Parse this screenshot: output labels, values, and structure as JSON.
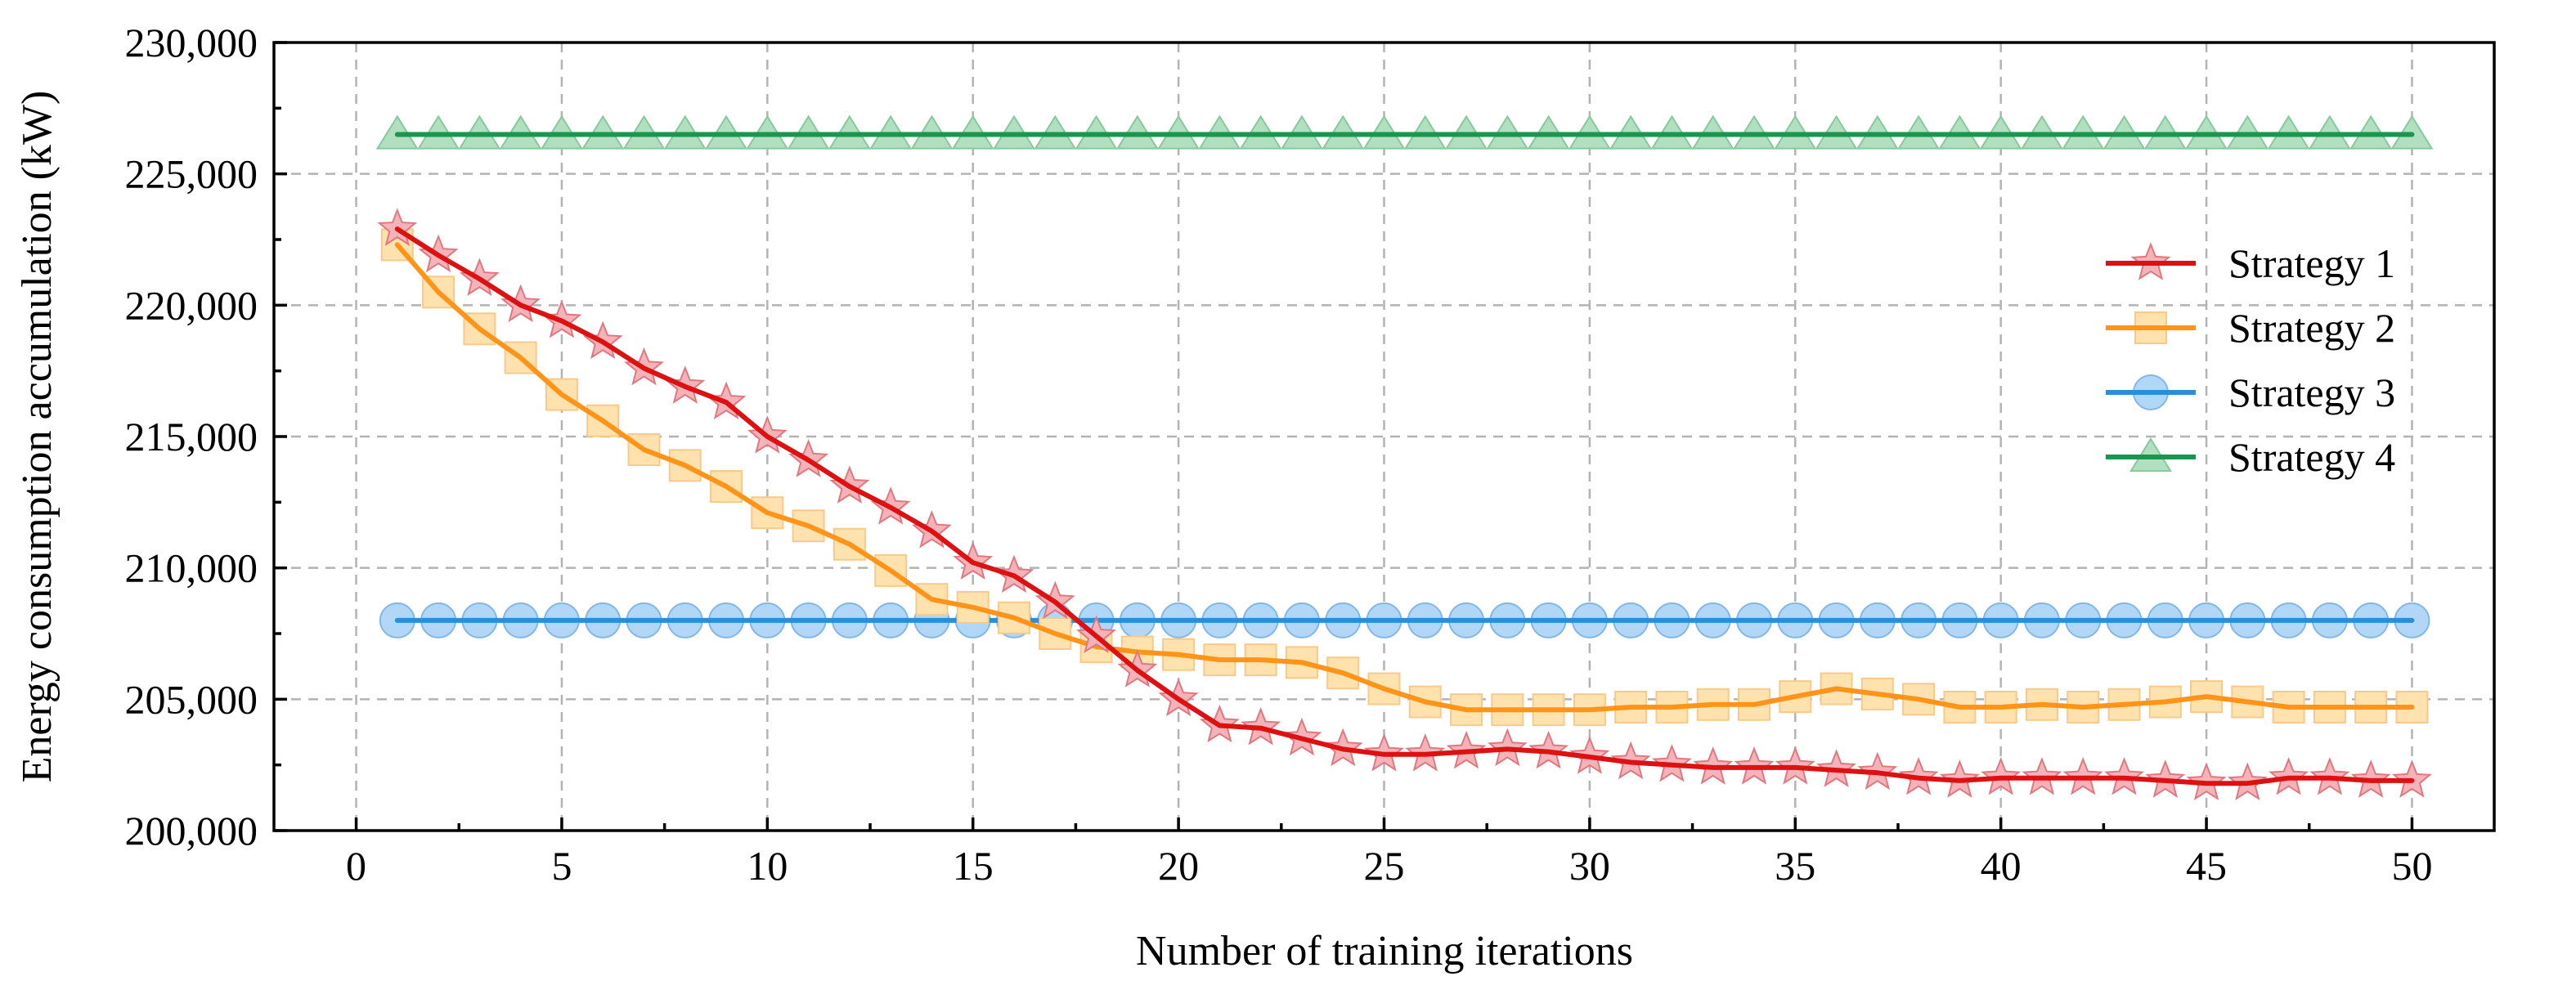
{
  "chart_data": {
    "type": "line",
    "title": "",
    "xlabel": "Number of training iterations",
    "ylabel": "Energy consumption accumulation (kW)",
    "xlim": [
      -2,
      52
    ],
    "ylim": [
      200000,
      230000
    ],
    "xticks": [
      0,
      5,
      10,
      15,
      20,
      25,
      30,
      35,
      40,
      45,
      50
    ],
    "xtick_labels": [
      "0",
      "5",
      "10",
      "15",
      "20",
      "25",
      "30",
      "35",
      "40",
      "45",
      "50"
    ],
    "yticks": [
      200000,
      205000,
      210000,
      215000,
      220000,
      225000,
      230000
    ],
    "ytick_labels": [
      "200,000",
      "205,000",
      "210,000",
      "215,000",
      "220,000",
      "225,000",
      "230,000"
    ],
    "grid": true,
    "legend_position": "right",
    "x": [
      1,
      2,
      3,
      4,
      5,
      6,
      7,
      8,
      9,
      10,
      11,
      12,
      13,
      14,
      15,
      16,
      17,
      18,
      19,
      20,
      21,
      22,
      23,
      24,
      25,
      26,
      27,
      28,
      29,
      30,
      31,
      32,
      33,
      34,
      35,
      36,
      37,
      38,
      39,
      40,
      41,
      42,
      43,
      44,
      45,
      46,
      47,
      48,
      49,
      50
    ],
    "series": [
      {
        "name": "Strategy 1",
        "line_color": "#dd1111",
        "marker": "star",
        "marker_fill": "#f3b3b8",
        "marker_stroke": "#e07880",
        "values": [
          222900,
          221900,
          221000,
          220000,
          219400,
          218600,
          217600,
          216900,
          216300,
          215000,
          214100,
          213100,
          212300,
          211400,
          210200,
          209700,
          208700,
          207400,
          206100,
          205000,
          204000,
          203900,
          203500,
          203100,
          202900,
          202900,
          203000,
          203100,
          203000,
          202800,
          202600,
          202500,
          202400,
          202400,
          202400,
          202300,
          202200,
          202000,
          201900,
          202000,
          202000,
          202000,
          202000,
          201900,
          201800,
          201800,
          202000,
          202000,
          201900,
          201900
        ]
      },
      {
        "name": "Strategy 2",
        "line_color": "#ff9419",
        "marker": "square",
        "marker_fill": "#ffe2ad",
        "marker_stroke": "#f8c98a",
        "values": [
          222300,
          220500,
          219100,
          218000,
          216600,
          215600,
          214500,
          213900,
          213100,
          212100,
          211600,
          210900,
          209900,
          208800,
          208500,
          208100,
          207500,
          207000,
          206800,
          206700,
          206500,
          206500,
          206400,
          206000,
          205400,
          204900,
          204600,
          204600,
          204600,
          204600,
          204700,
          204700,
          204800,
          204800,
          205100,
          205400,
          205200,
          205000,
          204700,
          204700,
          204800,
          204700,
          204800,
          204900,
          205100,
          204900,
          204700,
          204700,
          204700,
          204700
        ]
      },
      {
        "name": "Strategy 3",
        "line_color": "#2b8fd8",
        "marker": "circle",
        "marker_fill": "#b2d6f5",
        "marker_stroke": "#80b8ea",
        "values": [
          208000,
          208000,
          208000,
          208000,
          208000,
          208000,
          208000,
          208000,
          208000,
          208000,
          208000,
          208000,
          208000,
          208000,
          208000,
          208000,
          208000,
          208000,
          208000,
          208000,
          208000,
          208000,
          208000,
          208000,
          208000,
          208000,
          208000,
          208000,
          208000,
          208000,
          208000,
          208000,
          208000,
          208000,
          208000,
          208000,
          208000,
          208000,
          208000,
          208000,
          208000,
          208000,
          208000,
          208000,
          208000,
          208000,
          208000,
          208000,
          208000,
          208000
        ]
      },
      {
        "name": "Strategy 4",
        "line_color": "#1a9650",
        "marker": "triangle",
        "marker_fill": "#b2dfbf",
        "marker_stroke": "#86c99b",
        "values": [
          226500,
          226500,
          226500,
          226500,
          226500,
          226500,
          226500,
          226500,
          226500,
          226500,
          226500,
          226500,
          226500,
          226500,
          226500,
          226500,
          226500,
          226500,
          226500,
          226500,
          226500,
          226500,
          226500,
          226500,
          226500,
          226500,
          226500,
          226500,
          226500,
          226500,
          226500,
          226500,
          226500,
          226500,
          226500,
          226500,
          226500,
          226500,
          226500,
          226500,
          226500,
          226500,
          226500,
          226500,
          226500,
          226500,
          226500,
          226500,
          226500,
          226500
        ]
      }
    ]
  }
}
